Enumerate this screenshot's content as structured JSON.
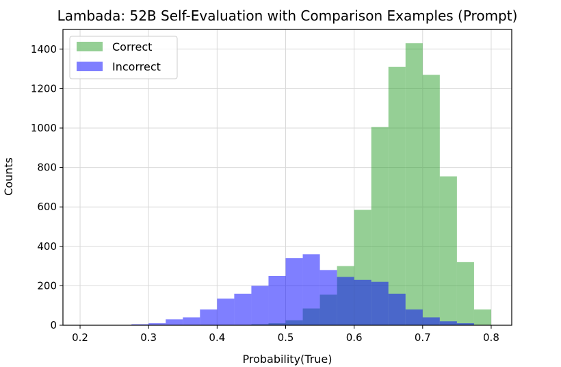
{
  "chart_data": {
    "type": "histogram",
    "title": "Lambada: 52B Self-Evaluation with Comparison Examples (Prompt)",
    "xlabel": "Probability(True)",
    "ylabel": "Counts",
    "xlim": [
      0.175,
      0.83
    ],
    "ylim": [
      0,
      1500
    ],
    "xticks": [
      0.2,
      0.3,
      0.4,
      0.5,
      0.6,
      0.7,
      0.8
    ],
    "yticks": [
      0,
      200,
      400,
      600,
      800,
      1000,
      1200,
      1400
    ],
    "grid": true,
    "legend": "top-left",
    "bin_edges": [
      0.275,
      0.3,
      0.325,
      0.35,
      0.375,
      0.4,
      0.425,
      0.45,
      0.475,
      0.5,
      0.525,
      0.55,
      0.575,
      0.6,
      0.625,
      0.65,
      0.675,
      0.7,
      0.725,
      0.75,
      0.775,
      0.8
    ],
    "series": [
      {
        "name": "Correct",
        "color": "#2ca02c",
        "opacity": 0.5,
        "values": [
          0,
          0,
          0,
          0,
          0,
          0,
          0,
          5,
          10,
          25,
          85,
          155,
          300,
          585,
          1005,
          1310,
          1430,
          1270,
          755,
          320,
          80
        ]
      },
      {
        "name": "Incorrect",
        "color": "#0000ff",
        "opacity": 0.5,
        "values": [
          5,
          10,
          30,
          40,
          80,
          135,
          160,
          200,
          250,
          340,
          360,
          280,
          245,
          230,
          220,
          160,
          80,
          40,
          20,
          10,
          0
        ]
      }
    ]
  }
}
